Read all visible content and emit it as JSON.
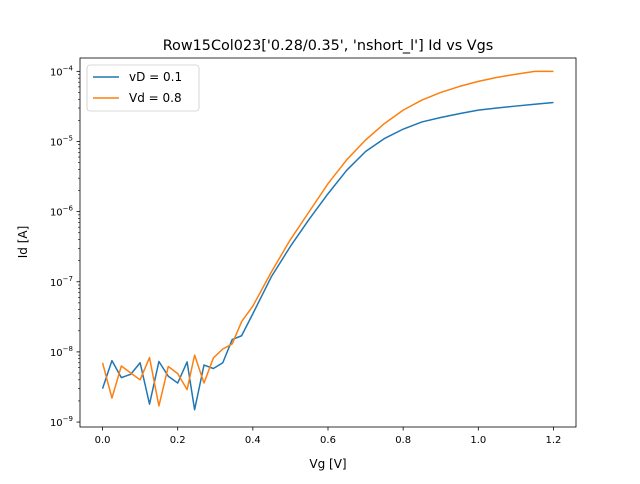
{
  "chart_data": {
    "type": "line",
    "title": "Row15Col023['0.28/0.35', 'nshort_l'] Id vs Vgs",
    "xlabel": "Vg [V]",
    "ylabel": "Id [A]",
    "xlim": [
      -0.06,
      1.26
    ],
    "ylim": [
      8.5e-10,
      0.000155
    ],
    "yscale": "log",
    "grid": false,
    "legend_position": "top-left",
    "x_ticks": [
      0.0,
      0.2,
      0.4,
      0.6,
      0.8,
      1.0,
      1.2
    ],
    "x_tick_labels": [
      "0.0",
      "0.2",
      "0.4",
      "0.6",
      "0.8",
      "1.0",
      "1.2"
    ],
    "y_ticks": [
      1e-09,
      1e-08,
      1e-07,
      1e-06,
      1e-05,
      0.0001
    ],
    "y_tick_bases": [
      "10",
      "10",
      "10",
      "10",
      "10",
      "10"
    ],
    "y_tick_exps": [
      "−9",
      "−8",
      "−7",
      "−6",
      "−5",
      "−4"
    ],
    "series": [
      {
        "name": "vD = 0.1",
        "color": "#1f77b4",
        "x": [
          0.0,
          0.025,
          0.05,
          0.075,
          0.1,
          0.125,
          0.15,
          0.175,
          0.2,
          0.225,
          0.245,
          0.27,
          0.295,
          0.32,
          0.345,
          0.37,
          0.4,
          0.45,
          0.5,
          0.55,
          0.6,
          0.65,
          0.7,
          0.75,
          0.8,
          0.85,
          0.9,
          0.95,
          1.0,
          1.05,
          1.1,
          1.15,
          1.2
        ],
        "y": [
          3e-09,
          7.5e-09,
          4.3e-09,
          4.8e-09,
          7e-09,
          1.8e-09,
          7.3e-09,
          4.5e-09,
          3.6e-09,
          7.2e-09,
          1.5e-09,
          6.5e-09,
          5.8e-09,
          7e-09,
          1.5e-08,
          1.7e-08,
          3.5e-08,
          1.2e-07,
          3.2e-07,
          7.8e-07,
          1.8e-06,
          3.9e-06,
          7.2e-06,
          1.1e-05,
          1.5e-05,
          1.9e-05,
          2.2e-05,
          2.5e-05,
          2.8e-05,
          3e-05,
          3.2e-05,
          3.4e-05,
          3.6e-05
        ]
      },
      {
        "name": "Vd = 0.8",
        "color": "#ff7f0e",
        "x": [
          0.0,
          0.025,
          0.05,
          0.075,
          0.1,
          0.125,
          0.15,
          0.175,
          0.2,
          0.225,
          0.245,
          0.27,
          0.295,
          0.32,
          0.345,
          0.37,
          0.4,
          0.45,
          0.5,
          0.55,
          0.6,
          0.65,
          0.7,
          0.75,
          0.8,
          0.85,
          0.9,
          0.95,
          1.0,
          1.05,
          1.1,
          1.15,
          1.2
        ],
        "y": [
          7e-09,
          2.2e-09,
          6.3e-09,
          5e-09,
          4e-09,
          8.3e-09,
          1.7e-09,
          6.2e-09,
          4.9e-09,
          2.9e-09,
          9e-09,
          3.6e-09,
          8.2e-09,
          1.1e-08,
          1.3e-08,
          2.7e-08,
          4.5e-08,
          1.4e-07,
          4e-07,
          1e-06,
          2.5e-06,
          5.5e-06,
          1.05e-05,
          1.8e-05,
          2.8e-05,
          3.9e-05,
          5e-05,
          6.1e-05,
          7.2e-05,
          8.2e-05,
          9.1e-05,
          0.0001,
          0.0001
        ]
      }
    ]
  }
}
